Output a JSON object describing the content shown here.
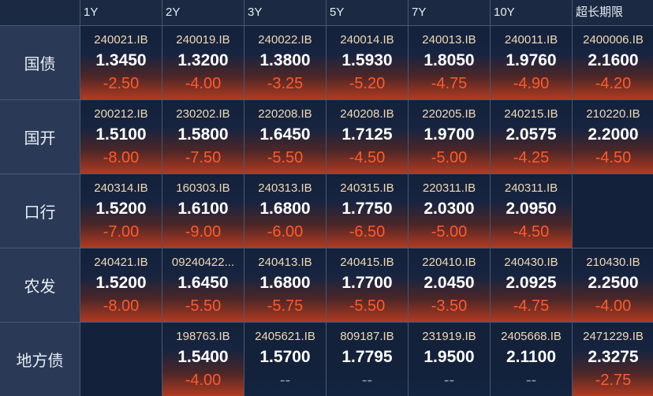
{
  "headers": [
    "1Y",
    "2Y",
    "3Y",
    "5Y",
    "7Y",
    "10Y",
    "超长期限"
  ],
  "rows": [
    {
      "label": "国债",
      "cells": [
        {
          "code": "240021.IB",
          "price": "1.3450",
          "change": "-2.50"
        },
        {
          "code": "240019.IB",
          "price": "1.3200",
          "change": "-4.00"
        },
        {
          "code": "240022.IB",
          "price": "1.3800",
          "change": "-3.25"
        },
        {
          "code": "240014.IB",
          "price": "1.5930",
          "change": "-5.20"
        },
        {
          "code": "240013.IB",
          "price": "1.8050",
          "change": "-4.75"
        },
        {
          "code": "240011.IB",
          "price": "1.9760",
          "change": "-4.90"
        },
        {
          "code": "2400006.IB",
          "price": "2.1600",
          "change": "-4.20"
        }
      ]
    },
    {
      "label": "国开",
      "cells": [
        {
          "code": "200212.IB",
          "price": "1.5100",
          "change": "-8.00"
        },
        {
          "code": "230202.IB",
          "price": "1.5800",
          "change": "-7.50"
        },
        {
          "code": "220208.IB",
          "price": "1.6450",
          "change": "-5.50"
        },
        {
          "code": "240208.IB",
          "price": "1.7125",
          "change": "-4.50"
        },
        {
          "code": "220205.IB",
          "price": "1.9700",
          "change": "-5.00"
        },
        {
          "code": "240215.IB",
          "price": "2.0575",
          "change": "-4.25"
        },
        {
          "code": "210220.IB",
          "price": "2.2000",
          "change": "-4.50"
        }
      ]
    },
    {
      "label": "口行",
      "cells": [
        {
          "code": "240314.IB",
          "price": "1.5200",
          "change": "-7.00"
        },
        {
          "code": "160303.IB",
          "price": "1.6100",
          "change": "-9.00"
        },
        {
          "code": "240313.IB",
          "price": "1.6800",
          "change": "-6.00"
        },
        {
          "code": "240315.IB",
          "price": "1.7750",
          "change": "-6.50"
        },
        {
          "code": "220311.IB",
          "price": "2.0300",
          "change": "-5.00"
        },
        {
          "code": "240311.IB",
          "price": "2.0950",
          "change": "-4.50"
        },
        null
      ]
    },
    {
      "label": "农发",
      "cells": [
        {
          "code": "240421.IB",
          "price": "1.5200",
          "change": "-8.00"
        },
        {
          "code": "09240422...",
          "price": "1.6450",
          "change": "-5.50"
        },
        {
          "code": "240413.IB",
          "price": "1.6800",
          "change": "-5.75"
        },
        {
          "code": "240415.IB",
          "price": "1.7700",
          "change": "-5.50"
        },
        {
          "code": "220410.IB",
          "price": "2.0450",
          "change": "-3.50"
        },
        {
          "code": "240430.IB",
          "price": "2.0925",
          "change": "-4.75"
        },
        {
          "code": "210430.IB",
          "price": "2.2500",
          "change": "-4.00"
        }
      ]
    },
    {
      "label": "地方债",
      "cells": [
        null,
        {
          "code": "198763.IB",
          "price": "1.5400",
          "change": "-4.00"
        },
        {
          "code": "2405621.IB",
          "price": "1.5700",
          "change": "--"
        },
        {
          "code": "809187.IB",
          "price": "1.7795",
          "change": "--"
        },
        {
          "code": "231919.IB",
          "price": "1.9500",
          "change": "--"
        },
        {
          "code": "2405668.IB",
          "price": "2.1100",
          "change": "--"
        },
        {
          "code": "2471229.IB",
          "price": "2.3275",
          "change": "-2.75"
        }
      ]
    }
  ]
}
